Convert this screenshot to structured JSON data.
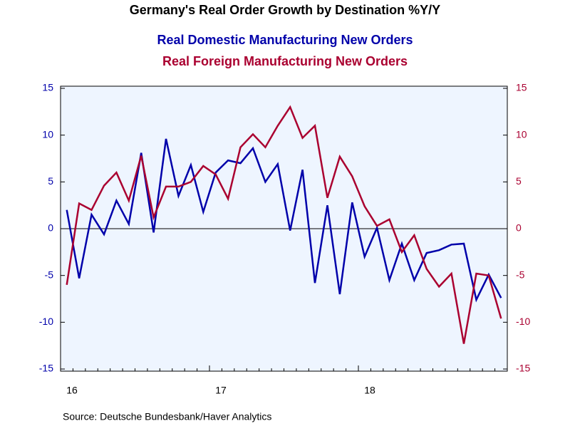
{
  "chart_data": {
    "type": "line",
    "title": "Germany's Real Order Growth by Destination %Y/Y",
    "source": "Source:  Deutsche Bundesbank/Haver Analytics",
    "categories": [
      "16",
      null,
      null,
      null,
      null,
      null,
      null,
      null,
      null,
      null,
      null,
      null,
      "17",
      null,
      null,
      null,
      null,
      null,
      null,
      null,
      null,
      null,
      null,
      null,
      "18",
      null,
      null,
      null,
      null,
      null,
      null,
      null,
      null,
      null,
      null,
      null
    ],
    "series": [
      {
        "name": "Real Domestic Manufacturing New Orders",
        "color": "#0000aa",
        "values": [
          2.0,
          -5.3,
          1.5,
          -0.6,
          3.0,
          0.5,
          8.1,
          -0.4,
          9.6,
          3.5,
          6.8,
          1.8,
          6.0,
          7.3,
          7.0,
          8.6,
          5.0,
          6.9,
          -0.2,
          6.3,
          -5.8,
          2.5,
          -7.0,
          2.8,
          -3.0,
          0.1,
          -5.5,
          -1.6,
          -5.5,
          -2.6,
          -2.3,
          -1.7,
          -1.6,
          -7.6,
          -4.9,
          -7.4
        ]
      },
      {
        "name": "Real Foreign Manufacturing New Orders",
        "color": "#aa0030",
        "axis": "y2",
        "values": [
          -6.0,
          2.7,
          2.0,
          4.6,
          6.0,
          3.0,
          7.8,
          1.2,
          4.5,
          4.5,
          5.0,
          6.7,
          5.8,
          3.2,
          8.7,
          10.1,
          8.7,
          11.0,
          13.0,
          9.7,
          11.0,
          3.3,
          7.7,
          5.6,
          2.4,
          0.3,
          1.0,
          -2.5,
          -0.7,
          -4.3,
          -6.2,
          -4.8,
          -12.3,
          -4.8,
          -5.0,
          -9.6
        ]
      }
    ],
    "ylim": [
      -15,
      15
    ],
    "yticks": [
      -15,
      -10,
      -5,
      0,
      5,
      10,
      15
    ],
    "y2lim": [
      -15,
      15
    ],
    "y2ticks": [
      -15,
      -10,
      -5,
      0,
      5,
      10,
      15
    ],
    "zero_line": true
  }
}
